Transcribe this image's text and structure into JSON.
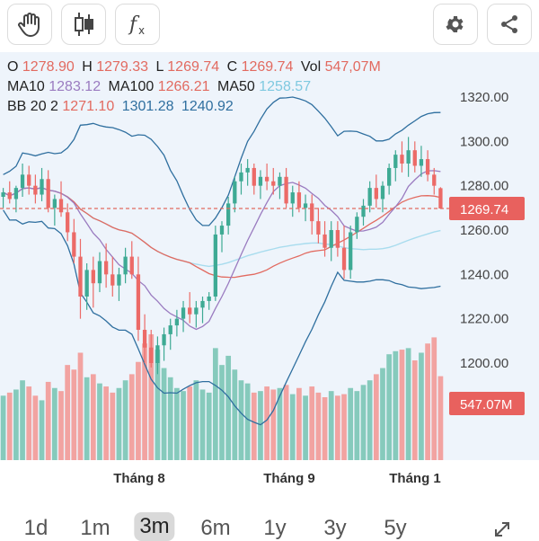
{
  "toolbar": {
    "left_icons": [
      "hand-icon",
      "candlestick-icon",
      "function-icon"
    ],
    "right_icons": [
      "gear-icon",
      "share-icon"
    ]
  },
  "legend": {
    "ohlc": [
      {
        "key": "O",
        "value": "1278.90"
      },
      {
        "key": "H",
        "value": "1279.33"
      },
      {
        "key": "L",
        "value": "1269.74"
      },
      {
        "key": "C",
        "value": "1269.74"
      },
      {
        "key": "Vol",
        "value": "547,07M"
      }
    ],
    "ma": [
      {
        "key": "MA10",
        "value": "1283.12",
        "color": "#9a7bc0"
      },
      {
        "key": "MA100",
        "value": "1266.21",
        "color": "#e26a60"
      },
      {
        "key": "MA50",
        "value": "1258.57",
        "color": "#7fd0ea"
      }
    ],
    "bb": {
      "key": "BB 20 2",
      "values": [
        "1271.10",
        "1301.28",
        "1240.92"
      ],
      "colors": [
        "#e26a60",
        "#2f6f9f",
        "#2f6f9f"
      ]
    }
  },
  "price_axis": {
    "ticks": [
      "1320.00",
      "1300.00",
      "1280.00",
      "1260.00",
      "1240.00",
      "1220.00",
      "1200.00"
    ],
    "tick_values": [
      1320,
      1300,
      1280,
      1260,
      1240,
      1220,
      1200
    ],
    "current_price": "1269.74",
    "current_price_value": 1269.74,
    "current_volume": "547.07M"
  },
  "time_axis": {
    "labels": [
      "Tháng 8",
      "Tháng 9",
      "Tháng 1"
    ]
  },
  "periods": {
    "items": [
      "1d",
      "1m",
      "3m",
      "6m",
      "1y",
      "3y",
      "5y"
    ],
    "active": "3m"
  },
  "colors": {
    "up": "#3eaa94",
    "down": "#ec6a67",
    "up_vol": "#86cabc",
    "down_vol": "#f2a3a1"
  },
  "chart_data": {
    "type": "candlestick",
    "candles": [
      [
        1275,
        1279,
        1270,
        1277
      ],
      [
        1277,
        1282,
        1272,
        1274
      ],
      [
        1274,
        1280,
        1268,
        1279
      ],
      [
        1279,
        1290,
        1275,
        1285
      ],
      [
        1285,
        1289,
        1276,
        1280
      ],
      [
        1280,
        1285,
        1272,
        1276
      ],
      [
        1276,
        1288,
        1273,
        1283
      ],
      [
        1283,
        1287,
        1268,
        1270
      ],
      [
        1270,
        1276,
        1262,
        1274
      ],
      [
        1274,
        1282,
        1266,
        1268
      ],
      [
        1268,
        1272,
        1255,
        1259
      ],
      [
        1259,
        1265,
        1245,
        1248
      ],
      [
        1248,
        1256,
        1220,
        1230
      ],
      [
        1230,
        1245,
        1224,
        1242
      ],
      [
        1242,
        1248,
        1225,
        1236
      ],
      [
        1236,
        1250,
        1232,
        1246
      ],
      [
        1246,
        1254,
        1234,
        1240
      ],
      [
        1240,
        1248,
        1230,
        1235
      ],
      [
        1235,
        1243,
        1228,
        1240
      ],
      [
        1240,
        1252,
        1236,
        1248
      ],
      [
        1248,
        1255,
        1238,
        1240
      ],
      [
        1240,
        1248,
        1210,
        1215
      ],
      [
        1215,
        1222,
        1200,
        1207
      ],
      [
        1207,
        1215,
        1198,
        1200
      ],
      [
        1200,
        1212,
        1195,
        1208
      ],
      [
        1208,
        1216,
        1201,
        1213
      ],
      [
        1213,
        1220,
        1206,
        1217
      ],
      [
        1217,
        1224,
        1212,
        1220
      ],
      [
        1220,
        1228,
        1214,
        1225
      ],
      [
        1225,
        1232,
        1218,
        1222
      ],
      [
        1222,
        1228,
        1216,
        1225
      ],
      [
        1225,
        1230,
        1218,
        1228
      ],
      [
        1228,
        1232,
        1224,
        1230
      ],
      [
        1230,
        1262,
        1228,
        1258
      ],
      [
        1258,
        1264,
        1250,
        1262
      ],
      [
        1262,
        1275,
        1258,
        1272
      ],
      [
        1272,
        1284,
        1268,
        1282
      ],
      [
        1282,
        1290,
        1276,
        1286
      ],
      [
        1286,
        1292,
        1280,
        1288
      ],
      [
        1288,
        1290,
        1276,
        1280
      ],
      [
        1280,
        1287,
        1274,
        1284
      ],
      [
        1284,
        1290,
        1278,
        1282
      ],
      [
        1282,
        1288,
        1276,
        1280
      ],
      [
        1280,
        1286,
        1274,
        1284
      ],
      [
        1284,
        1288,
        1270,
        1272
      ],
      [
        1272,
        1280,
        1266,
        1277
      ],
      [
        1277,
        1282,
        1268,
        1270
      ],
      [
        1270,
        1276,
        1264,
        1272
      ],
      [
        1272,
        1276,
        1258,
        1264
      ],
      [
        1264,
        1270,
        1254,
        1258
      ],
      [
        1258,
        1264,
        1248,
        1252
      ],
      [
        1252,
        1264,
        1246,
        1260
      ],
      [
        1260,
        1264,
        1248,
        1252
      ],
      [
        1252,
        1262,
        1238,
        1242
      ],
      [
        1242,
        1262,
        1238,
        1259
      ],
      [
        1259,
        1268,
        1256,
        1266
      ],
      [
        1266,
        1274,
        1262,
        1271
      ],
      [
        1271,
        1282,
        1268,
        1279
      ],
      [
        1279,
        1285,
        1270,
        1274
      ],
      [
        1274,
        1282,
        1268,
        1280
      ],
      [
        1280,
        1290,
        1276,
        1288
      ],
      [
        1288,
        1296,
        1282,
        1294
      ],
      [
        1294,
        1300,
        1286,
        1290
      ],
      [
        1290,
        1302,
        1284,
        1296
      ],
      [
        1296,
        1300,
        1286,
        1289
      ],
      [
        1289,
        1298,
        1284,
        1292
      ],
      [
        1292,
        1296,
        1282,
        1285
      ],
      [
        1285,
        1288,
        1276,
        1280
      ],
      [
        1278.9,
        1279.33,
        1269.74,
        1269.74
      ]
    ],
    "volume_millions": [
      420,
      440,
      460,
      520,
      480,
      420,
      390,
      510,
      470,
      450,
      620,
      590,
      700,
      540,
      560,
      500,
      480,
      440,
      470,
      520,
      560,
      640,
      760,
      820,
      720,
      600,
      540,
      470,
      450,
      480,
      520,
      460,
      440,
      730,
      620,
      680,
      590,
      520,
      500,
      440,
      450,
      480,
      460,
      470,
      490,
      430,
      470,
      420,
      480,
      440,
      410,
      450,
      420,
      430,
      470,
      450,
      490,
      520,
      560,
      600,
      690,
      710,
      720,
      730,
      650,
      700,
      760,
      800,
      547.07
    ],
    "price_ylim": [
      1190,
      1330
    ],
    "x_labels": [
      "Tháng 8",
      "Tháng 9",
      "Tháng 1"
    ]
  }
}
